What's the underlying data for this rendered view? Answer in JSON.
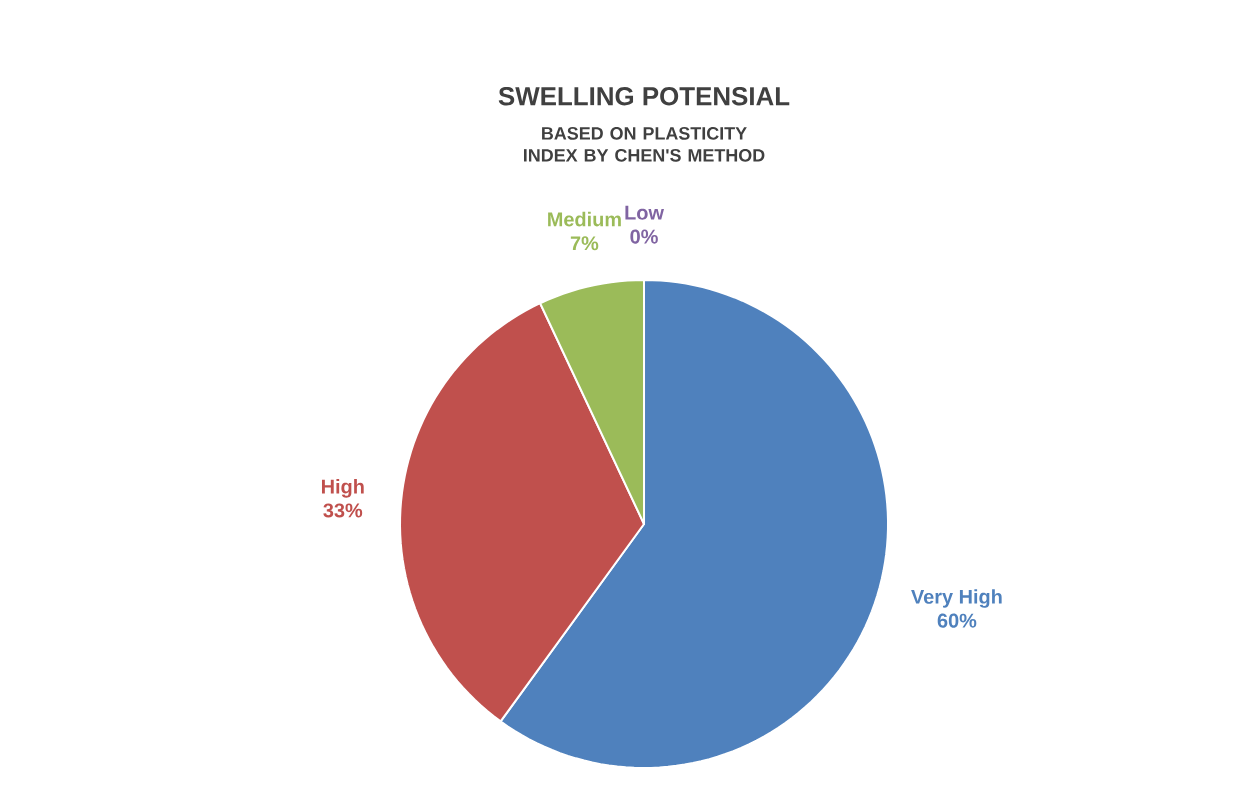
{
  "chart_data": {
    "type": "pie",
    "title": "SWELLING POTENSIAL",
    "subtitle": "BASED ON PLASTICITY INDEX BY CHEN'S METHOD",
    "categories": [
      "Very High",
      "High",
      "Medium",
      "Low"
    ],
    "values": [
      60,
      33,
      7,
      0
    ],
    "value_labels": [
      "60%",
      "33%",
      "7%",
      "0%"
    ],
    "colors": [
      "#4f81bd",
      "#c0504d",
      "#9bbb59",
      "#8064a2"
    ]
  }
}
